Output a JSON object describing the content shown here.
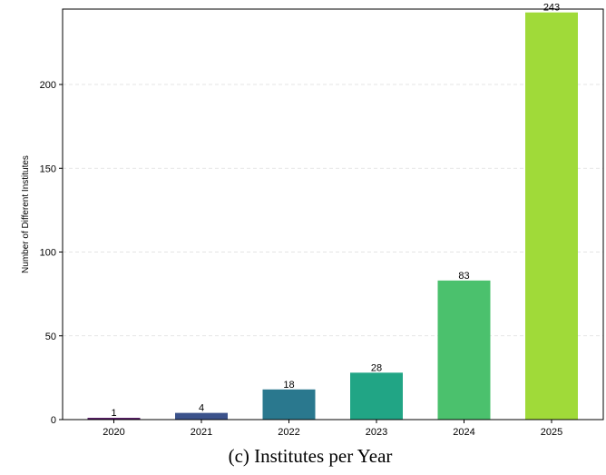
{
  "chart_data": {
    "type": "bar",
    "categories": [
      "2020",
      "2021",
      "2022",
      "2023",
      "2024",
      "2025"
    ],
    "values": [
      1,
      4,
      18,
      28,
      83,
      243
    ],
    "data_labels": [
      "1",
      "4",
      "18",
      "28",
      "83",
      "243"
    ],
    "bar_colors": [
      "#440154",
      "#3b528b",
      "#2a788e",
      "#21a585",
      "#4bc16d",
      "#a0da39"
    ],
    "xlabel": "",
    "ylabel": "Number of Different Institutes",
    "ylim": [
      0,
      245
    ],
    "yticks": [
      0,
      50,
      100,
      150,
      200
    ],
    "ytick_labels": [
      "0",
      "50",
      "100",
      "150",
      "200"
    ],
    "grid": "horizontal dashed",
    "caption": "(c) Institutes per Year"
  }
}
